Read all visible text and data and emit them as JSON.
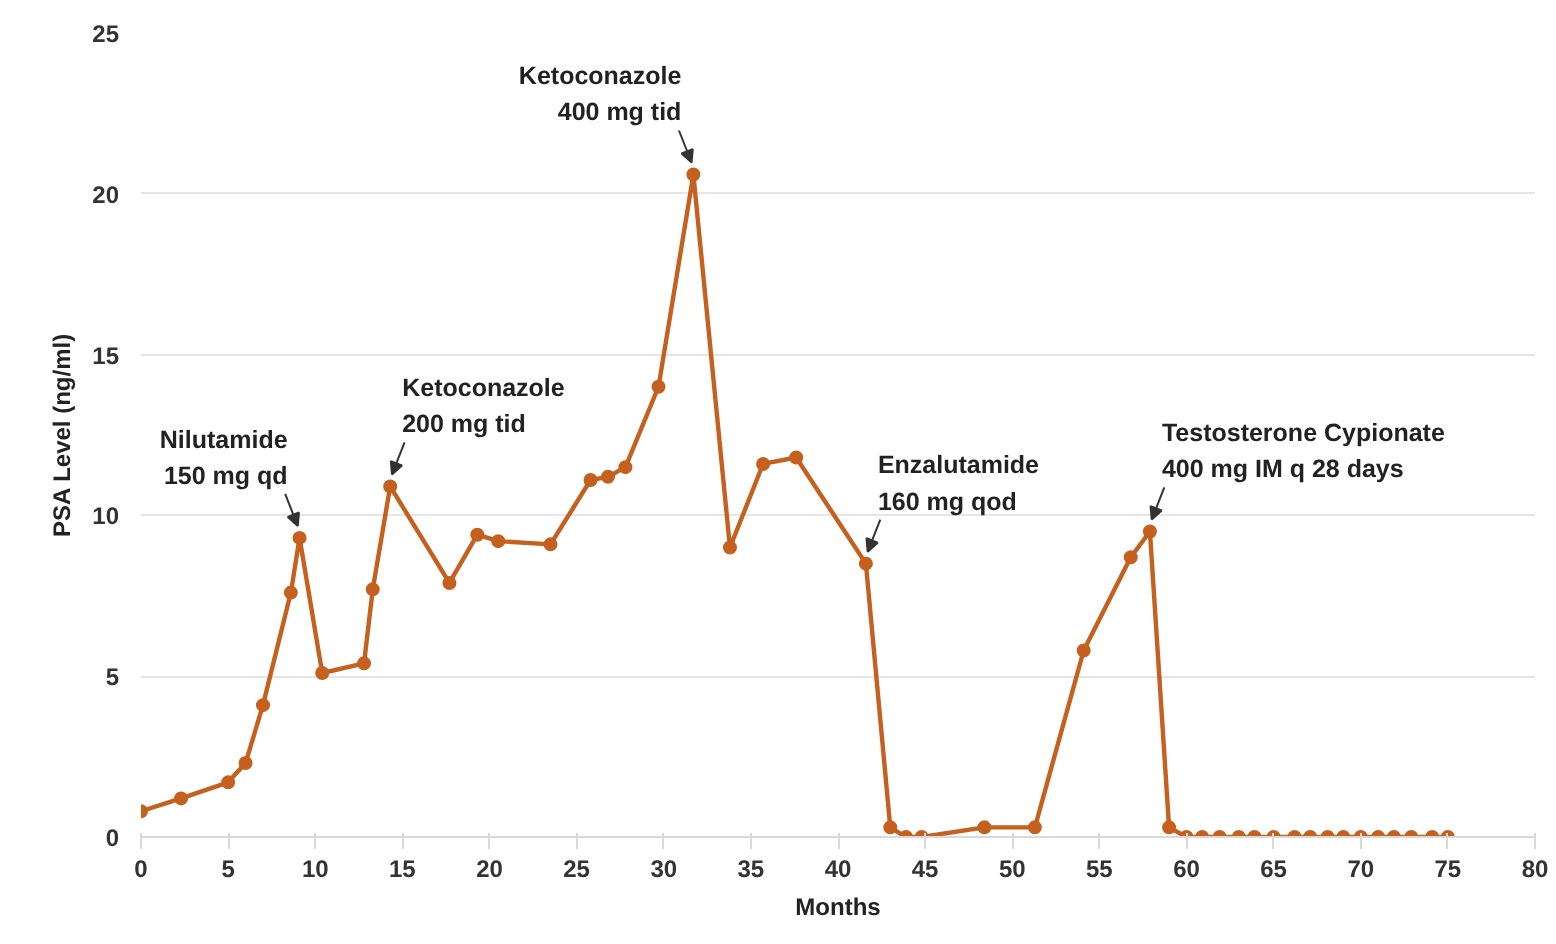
{
  "chart_data": {
    "type": "line",
    "xlabel": "Months",
    "ylabel": "PSA Level (ng/ml)",
    "x": [
      0,
      2.3,
      5,
      6,
      7,
      8.6,
      9.1,
      10.4,
      12.8,
      13.3,
      14.3,
      17.7,
      19.3,
      20.5,
      23.5,
      25.8,
      26.8,
      27.8,
      29.7,
      31.7,
      33.8,
      35.7,
      37.6,
      41.6,
      43,
      43.9,
      44.8,
      48.4,
      51.3,
      54.1,
      56.8,
      57.9,
      59,
      60,
      60.9,
      61.9,
      63,
      63.9,
      65,
      66.2,
      67.1,
      68.1,
      69,
      70,
      71,
      71.9,
      72.9,
      74.1,
      75
    ],
    "series": [
      {
        "color": "#c5601e",
        "values": [
          0.8,
          1.2,
          1.7,
          2.3,
          4.1,
          7.6,
          9.3,
          5.1,
          5.4,
          7.7,
          10.9,
          7.9,
          9.4,
          9.2,
          9.1,
          11.1,
          11.2,
          11.5,
          14.0,
          20.6,
          9.0,
          11.6,
          11.8,
          8.5,
          0.3,
          0,
          0,
          0.3,
          0.3,
          5.8,
          8.7,
          9.5,
          0.3,
          0,
          0,
          0,
          0,
          0,
          0,
          0,
          0,
          0,
          0,
          0,
          0,
          0,
          0,
          0,
          0
        ]
      }
    ],
    "marker": "circle",
    "line_style": "solid",
    "xlim": [
      0,
      80
    ],
    "ylim": [
      0,
      25
    ],
    "xticks": [
      0,
      5,
      10,
      15,
      20,
      25,
      30,
      35,
      40,
      45,
      50,
      55,
      60,
      65,
      70,
      75,
      80
    ],
    "yticks": [
      0,
      5,
      10,
      15,
      20,
      25
    ],
    "grid": "y",
    "annotations": [
      {
        "text": "Nilutamide\n150 mg qd",
        "x": 9.1,
        "y": 9.3
      },
      {
        "text": "Ketoconazole\n200 mg tid",
        "x": 14.3,
        "y": 10.9
      },
      {
        "text": "Ketoconazole\n400 mg tid",
        "x": 31.7,
        "y": 20.6
      },
      {
        "text": "Enzalutamide\n160 mg qod",
        "x": 41.6,
        "y": 8.5
      },
      {
        "text": "Testosterone Cypionate\n400 mg IM q 28 days",
        "x": 57.9,
        "y": 9.5
      }
    ]
  }
}
